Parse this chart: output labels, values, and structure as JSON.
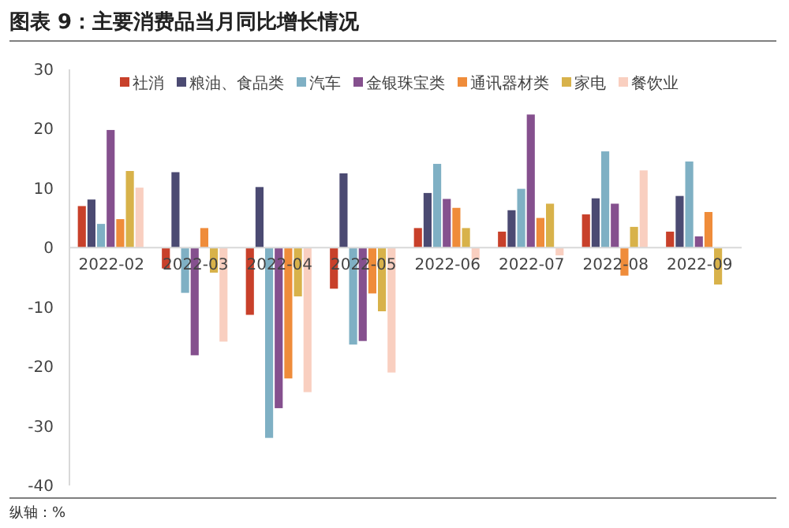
{
  "chart_data": {
    "type": "bar",
    "title": "图表 9：主要消费品当月同比增长情况",
    "categories": [
      "2022-02",
      "2022-03",
      "2022-04",
      "2022-05",
      "2022-06",
      "2022-07",
      "2022-08",
      "2022-09"
    ],
    "series": [
      {
        "name": "社消",
        "color": "#c8402a",
        "values": [
          7.0,
          -3.5,
          -11.3,
          -6.9,
          3.3,
          2.7,
          5.6,
          2.7
        ]
      },
      {
        "name": "粮油、食品类",
        "color": "#4b4a72",
        "values": [
          8.1,
          12.7,
          10.2,
          12.5,
          9.2,
          6.3,
          8.3,
          8.7
        ]
      },
      {
        "name": "汽车",
        "color": "#7fb0c4",
        "values": [
          4.0,
          -7.6,
          -32.0,
          -16.3,
          14.1,
          9.9,
          16.2,
          14.5
        ]
      },
      {
        "name": "金银珠宝类",
        "color": "#85508e",
        "values": [
          19.8,
          -18.1,
          -27.0,
          -15.7,
          8.2,
          22.4,
          7.4,
          1.9
        ]
      },
      {
        "name": "通讯器材类",
        "color": "#ef8c3a",
        "values": [
          4.8,
          3.3,
          -22.0,
          -7.7,
          6.7,
          5.0,
          -4.7,
          6.0
        ]
      },
      {
        "name": "家电",
        "color": "#d8b24a",
        "values": [
          12.9,
          -4.2,
          -8.2,
          -10.7,
          3.3,
          7.4,
          3.5,
          -6.2
        ]
      },
      {
        "name": "餐饮业",
        "color": "#f9cfc0",
        "values": [
          10.1,
          -15.8,
          -24.3,
          -21.0,
          -2.0,
          -1.3,
          13.0,
          null
        ]
      }
    ],
    "ylim": [
      -40,
      30
    ],
    "yticks": [
      -40,
      -30,
      -20,
      -10,
      0,
      10,
      20,
      30
    ],
    "grid": false,
    "legend": "top",
    "annotations": [
      "纵轴：%"
    ]
  }
}
